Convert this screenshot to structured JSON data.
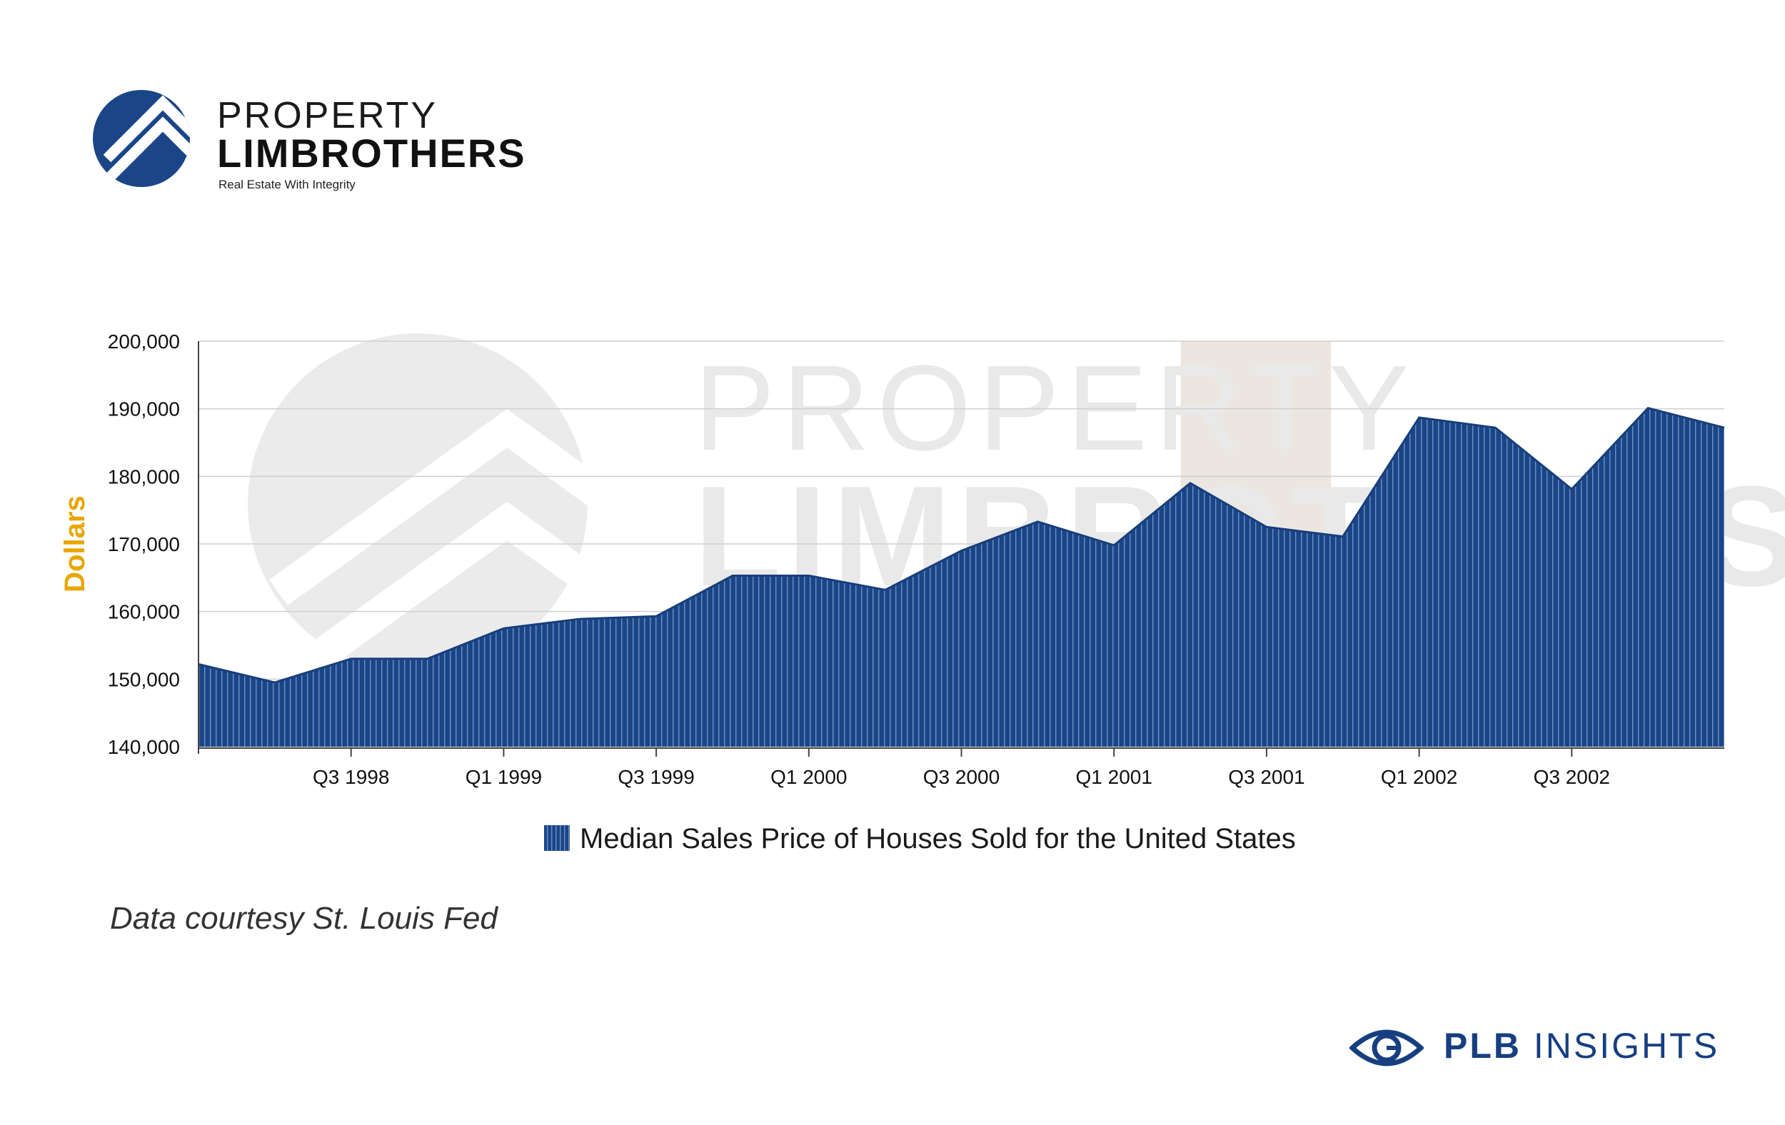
{
  "logo": {
    "line1": "PROPERTY",
    "line2": "LIMBROTHERS",
    "tagline": "Real Estate With Integrity"
  },
  "watermark": {
    "line1": "PROPERTY",
    "line2": "LIMBROTHERS"
  },
  "footnote": "Data courtesy St. Louis Fed",
  "brand": {
    "strong": "PLB",
    "rest": "INSIGHTS",
    "icon": "eye-icon"
  },
  "colors": {
    "series": "#1a4688",
    "accent_ylabel": "#e8a600",
    "highlight": "#ebe7e0",
    "brand": "#173f80"
  },
  "chart_data": {
    "type": "area",
    "title": "",
    "xlabel": "",
    "ylabel": "Dollars",
    "ylim": [
      140000,
      200000
    ],
    "yticks": [
      "140,000",
      "150,000",
      "160,000",
      "170,000",
      "180,000",
      "190,000",
      "200,000"
    ],
    "x": [
      "Q1 1998",
      "Q2 1998",
      "Q3 1998",
      "Q4 1998",
      "Q1 1999",
      "Q2 1999",
      "Q3 1999",
      "Q4 1999",
      "Q1 2000",
      "Q2 2000",
      "Q3 2000",
      "Q4 2000",
      "Q1 2001",
      "Q2 2001",
      "Q3 2001",
      "Q4 2001",
      "Q1 2002",
      "Q2 2002",
      "Q3 2002",
      "Q4 2002",
      "Q1 2003"
    ],
    "xtick_labels": [
      "Q3 1998",
      "Q1 1999",
      "Q3 1999",
      "Q1 2000",
      "Q3 2000",
      "Q1 2001",
      "Q3 2001",
      "Q1 2002",
      "Q3 2002"
    ],
    "series": [
      {
        "name": "Median Sales Price of Houses Sold for the United States",
        "values": [
          152200,
          149500,
          153000,
          153000,
          157500,
          158900,
          159300,
          165300,
          165300,
          163200,
          169000,
          173300,
          169800,
          179000,
          172500,
          171100,
          188700,
          187200,
          178100,
          190100,
          187200
        ]
      }
    ],
    "grid": true,
    "legend": "bottom-center",
    "highlight_range": [
      "Q2 2001",
      "Q4 2001"
    ]
  }
}
